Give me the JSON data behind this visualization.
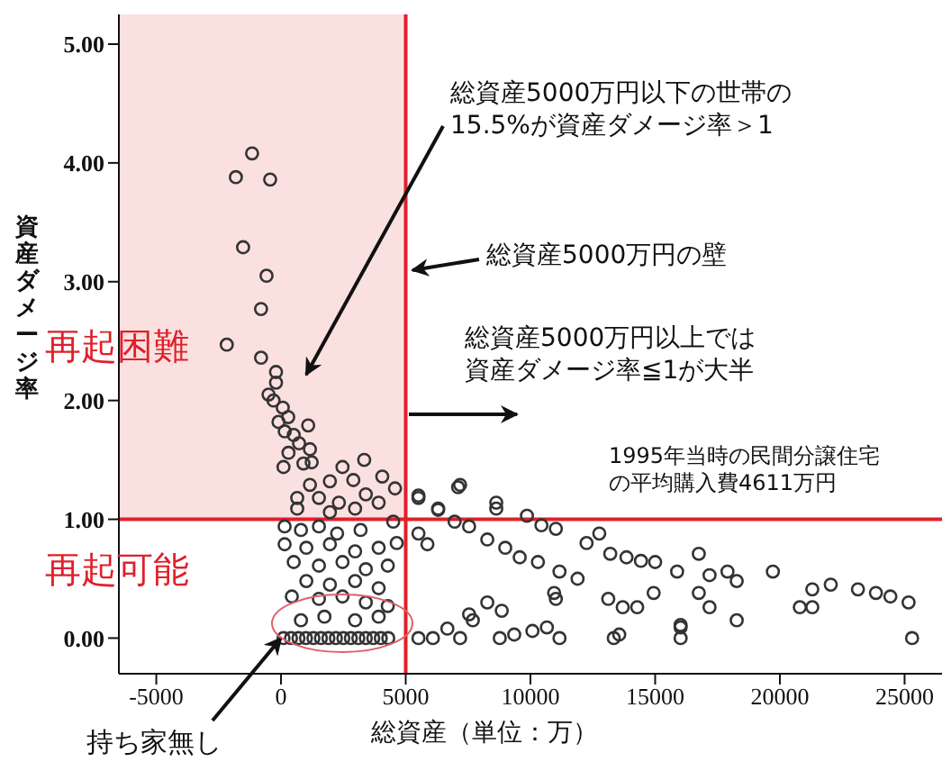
{
  "chart_data": {
    "type": "scatter",
    "xlabel": "総資産（単位：万）",
    "ylabel": "資産ダメージ率",
    "xlim": [
      -6500,
      26500
    ],
    "xticks": [
      -5000,
      0,
      5000,
      10000,
      15000,
      20000,
      25000
    ],
    "ylim": [
      -0.3,
      5.25
    ],
    "yticks": [
      {
        "value": 0,
        "label": "0.00"
      },
      {
        "value": 1,
        "label": "1.00"
      },
      {
        "value": 2,
        "label": "2.00"
      },
      {
        "value": 3,
        "label": "3.00"
      },
      {
        "value": 4,
        "label": "4.00"
      },
      {
        "value": 5,
        "label": "5.00"
      }
    ],
    "grid": false,
    "legend": false,
    "marker": "circle",
    "series": [
      {
        "color": "#333333",
        "x": [
          -1160,
          -1810,
          -435,
          -1520,
          -580,
          -800,
          -2175,
          -800,
          -200,
          -200,
          -500,
          -300,
          70,
          290,
          -100,
          150,
          510,
          1090,
          725,
          1160,
          300,
          100,
          900,
          1230,
          2465,
          3335,
          2900,
          1960,
          1160,
          4060,
          4570,
          3400,
          3915,
          650,
          1520,
          2320,
          650,
          1960,
          2970,
          5510,
          7180,
          6300,
          145,
          800,
          1520,
          2250,
          3190,
          4500,
          145,
          1015,
          1960,
          2970,
          3915,
          4640,
          510,
          1520,
          2465,
          3400,
          4280,
          1015,
          1960,
          2970,
          3915,
          435,
          1520,
          2465,
          3400,
          4280,
          800,
          1740,
          2970,
          3915,
          100,
          400,
          700,
          1000,
          1300,
          1600,
          1900,
          2200,
          2500,
          2800,
          3100,
          3400,
          3700,
          4000,
          4300,
          5510,
          5870,
          5510,
          6090,
          6670,
          7180,
          5510,
          7100,
          6300,
          8630,
          8630,
          9860,
          10440,
          11020,
          6960,
          7540,
          8270,
          8990,
          9570,
          10300,
          11165,
          11890,
          12250,
          12760,
          13200,
          13850,
          14430,
          15000,
          15880,
          16750,
          17180,
          17900,
          18270,
          19720,
          21300,
          22040,
          23130,
          23850,
          24430,
          25160,
          20800,
          21300,
          13120,
          13700,
          14280,
          14940,
          16750,
          17180,
          18270,
          16020,
          10950,
          11020,
          8270,
          8850,
          7540,
          7690,
          8770,
          9350,
          10080,
          10660,
          11165,
          13340,
          13560,
          16020,
          16020,
          25300
        ],
        "values": [
          4.08,
          3.88,
          3.86,
          3.29,
          3.05,
          2.77,
          2.47,
          2.36,
          2.24,
          2.15,
          2.05,
          2.0,
          1.94,
          1.86,
          1.82,
          1.74,
          1.71,
          1.79,
          1.64,
          1.59,
          1.56,
          1.44,
          1.47,
          1.48,
          1.44,
          1.5,
          1.33,
          1.32,
          1.29,
          1.36,
          1.26,
          1.21,
          1.14,
          1.18,
          1.18,
          1.14,
          1.09,
          1.06,
          1.09,
          1.18,
          1.29,
          1.08,
          0.94,
          0.91,
          0.94,
          0.88,
          0.91,
          0.98,
          0.79,
          0.76,
          0.79,
          0.73,
          0.76,
          0.8,
          0.64,
          0.61,
          0.64,
          0.58,
          0.61,
          0.48,
          0.45,
          0.48,
          0.42,
          0.35,
          0.33,
          0.35,
          0.3,
          0.27,
          0.15,
          0.18,
          0.15,
          0.18,
          0,
          0,
          0,
          0,
          0,
          0,
          0,
          0,
          0,
          0,
          0,
          0,
          0,
          0,
          0,
          0.88,
          0.79,
          0,
          0,
          0.08,
          0,
          1.2,
          1.27,
          1.09,
          1.14,
          1.09,
          1.03,
          0.95,
          0.92,
          0.98,
          0.94,
          0.83,
          0.76,
          0.68,
          0.64,
          0.56,
          0.5,
          0.8,
          0.88,
          0.71,
          0.68,
          0.65,
          0.64,
          0.56,
          0.71,
          0.53,
          0.56,
          0.48,
          0.56,
          0.41,
          0.45,
          0.41,
          0.38,
          0.35,
          0.3,
          0.26,
          0.26,
          0.33,
          0.26,
          0.26,
          0.38,
          0.38,
          0.26,
          0.15,
          0.11,
          0.38,
          0.33,
          0.3,
          0.23,
          0.2,
          0.15,
          0,
          0.03,
          0.06,
          0.09,
          0,
          0,
          0.03,
          0,
          0.09,
          0
        ]
      }
    ],
    "ref_lines": [
      {
        "axis": "x",
        "value": 5000,
        "color": "#e0202a"
      },
      {
        "axis": "y",
        "value": 1,
        "color": "#e0202a"
      }
    ],
    "bands": [
      {
        "axis": "x",
        "from": -6500,
        "to": 5000,
        "color": "#fbe0e0"
      }
    ],
    "annotations": [
      "総資産5000万円以下の世帯の15.5%が資産ダメージ率＞1",
      "総資産5000万円の壁",
      "総資産5000万円以上では資産ダメージ率≦1が大半",
      "1995年当時の民間分譲住宅の平均購入費4611万円",
      "再起困難",
      "再起可能",
      {
        "text": "持ち家無し",
        "x": 0,
        "y": 0
      }
    ]
  }
}
